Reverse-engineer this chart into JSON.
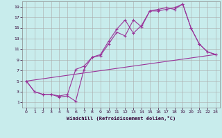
{
  "xlabel": "Windchill (Refroidissement éolien,°C)",
  "bg_color": "#c8ecec",
  "line_color": "#993399",
  "grid_color": "#aaaaaa",
  "xlim": [
    -0.5,
    23.5
  ],
  "ylim": [
    0,
    20
  ],
  "xticks": [
    0,
    1,
    2,
    3,
    4,
    5,
    6,
    7,
    8,
    9,
    10,
    11,
    12,
    13,
    14,
    15,
    16,
    17,
    18,
    19,
    20,
    21,
    22,
    23
  ],
  "yticks": [
    1,
    3,
    5,
    7,
    9,
    11,
    13,
    15,
    17,
    19
  ],
  "line1_x": [
    0,
    1,
    2,
    3,
    4,
    5,
    6,
    7,
    8,
    9,
    10,
    11,
    12,
    13,
    14,
    15,
    16,
    17,
    18,
    19,
    20,
    21,
    22,
    23
  ],
  "line1_y": [
    5,
    3,
    2.5,
    2.5,
    2.2,
    2.5,
    7.2,
    7.8,
    9.5,
    10.0,
    12.5,
    14.8,
    16.5,
    14.0,
    15.5,
    18.2,
    18.5,
    18.8,
    18.5,
    19.5,
    15.0,
    12.0,
    10.5,
    10.0
  ],
  "line2_x": [
    0,
    1,
    2,
    3,
    4,
    5,
    6,
    7,
    8,
    9,
    10,
    11,
    12,
    13,
    14,
    15,
    16,
    17,
    18,
    19,
    20,
    21,
    22,
    23
  ],
  "line2_y": [
    5,
    3,
    2.5,
    2.5,
    2.0,
    2.2,
    1.2,
    7.2,
    9.5,
    9.8,
    12.0,
    14.2,
    13.5,
    16.5,
    15.2,
    18.2,
    18.2,
    18.5,
    18.8,
    19.5,
    15.0,
    12.0,
    10.5,
    10.0
  ],
  "line3_x": [
    0,
    23
  ],
  "line3_y": [
    5,
    10
  ]
}
